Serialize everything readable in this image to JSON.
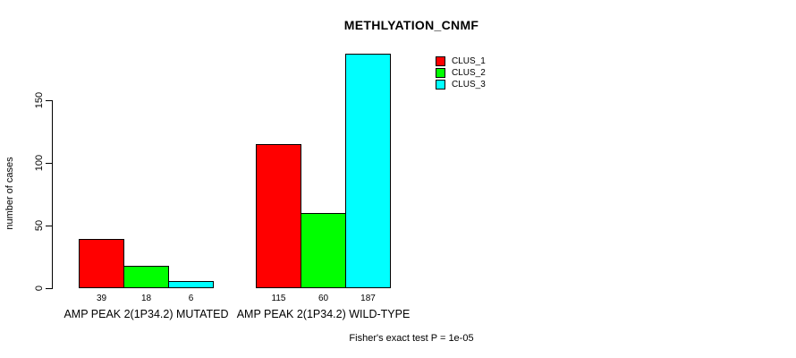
{
  "chart_data": {
    "type": "bar",
    "title": "METHLYATION_CNMF",
    "ylabel": "number of cases",
    "categories": [
      "AMP PEAK 2(1P34.2) MUTATED",
      "AMP PEAK 2(1P34.2) WILD-TYPE"
    ],
    "series": [
      {
        "name": "CLUS_1",
        "color": "#ff0000",
        "values": [
          39,
          115
        ]
      },
      {
        "name": "CLUS_2",
        "color": "#00ff00",
        "values": [
          18,
          60
        ]
      },
      {
        "name": "CLUS_3",
        "color": "#00ffff",
        "values": [
          6,
          187
        ]
      }
    ],
    "yticks": [
      0,
      50,
      100,
      150
    ],
    "ylim": [
      0,
      190
    ],
    "grid": false,
    "legend_position": "top-right",
    "value_labels_shown": true,
    "annotation": "Fisher's exact test P = 1e-05"
  }
}
